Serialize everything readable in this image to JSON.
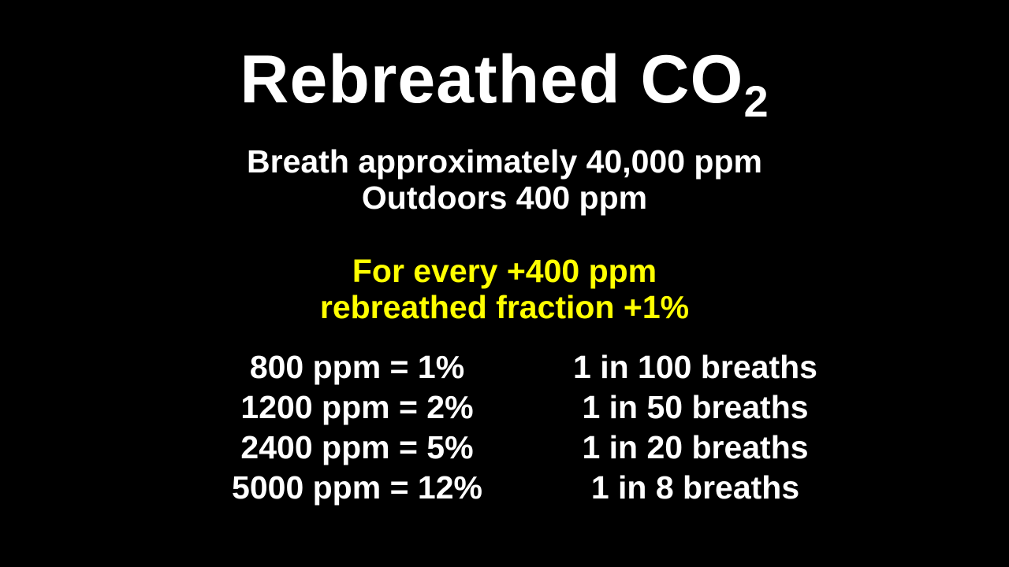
{
  "title": {
    "main": "Rebreathed CO",
    "subscript": "2"
  },
  "facts": [
    "Breath approximately 40,000 ppm",
    "Outdoors 400 ppm"
  ],
  "highlight": {
    "color": "#ffff00",
    "lines": [
      "For every +400 ppm",
      "rebreathed fraction +1%"
    ]
  },
  "table": [
    {
      "concentration": "800 ppm = 1%",
      "breaths": "1 in 100 breaths"
    },
    {
      "concentration": "1200 ppm = 2%",
      "breaths": "1 in 50 breaths"
    },
    {
      "concentration": "2400 ppm = 5%",
      "breaths": "1 in 20 breaths"
    },
    {
      "concentration": "5000 ppm = 12%",
      "breaths": "1 in 8 breaths"
    }
  ]
}
